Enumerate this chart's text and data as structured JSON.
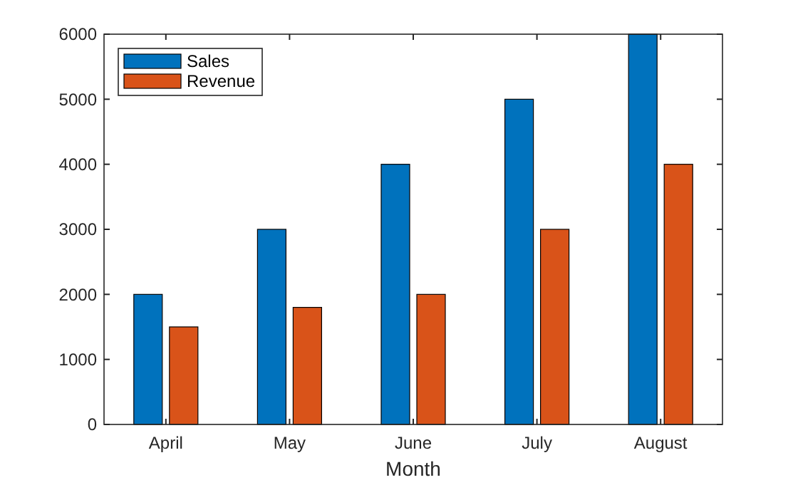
{
  "chart_data": {
    "type": "bar",
    "xlabel": "Month",
    "categories": [
      "April",
      "May",
      "June",
      "July",
      "August"
    ],
    "series": [
      {
        "name": "Sales",
        "color": "#0072bd",
        "values": [
          2000,
          3000,
          4000,
          5000,
          6000
        ]
      },
      {
        "name": "Revenue",
        "color": "#d95319",
        "values": [
          1500,
          1800,
          2000,
          3000,
          4000
        ]
      }
    ],
    "ylim": [
      0,
      6000
    ],
    "yticks": [
      0,
      1000,
      2000,
      3000,
      4000,
      5000,
      6000
    ],
    "legend": "top left",
    "grid": false
  }
}
